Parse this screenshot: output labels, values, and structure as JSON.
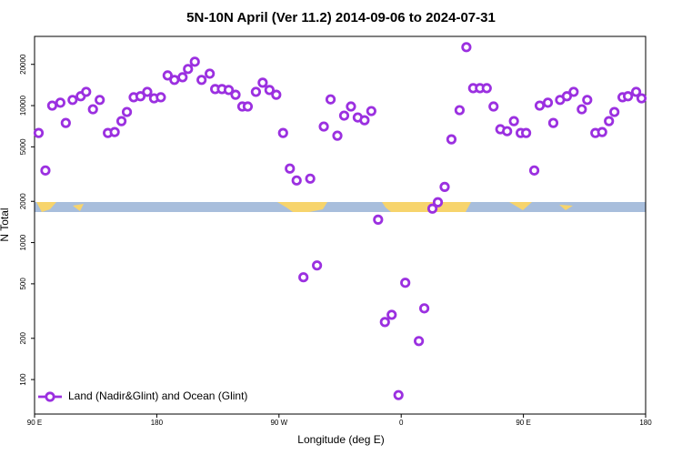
{
  "chart_data": {
    "type": "scatter",
    "title": "5N-10N April (Ver 11.2)   2014-09-06 to 2024-07-31",
    "xlabel": "Longitude (deg E)",
    "ylabel": "N Total",
    "xlim": [
      90,
      540
    ],
    "xticks": [
      {
        "value": 90,
        "label": "90 E"
      },
      {
        "value": 180,
        "label": "180"
      },
      {
        "value": 270,
        "label": "90 W"
      },
      {
        "value": 360,
        "label": "0"
      },
      {
        "value": 450,
        "label": "90 E"
      },
      {
        "value": 540,
        "label": "180"
      }
    ],
    "ylim": [
      56,
      32000
    ],
    "log_y": true,
    "yticks": [
      100,
      200,
      500,
      1000,
      2000,
      5000,
      10000,
      20000
    ],
    "legend": "bottom left",
    "x": [
      93,
      98,
      103,
      109,
      113,
      118,
      124,
      128,
      133,
      138,
      144,
      149,
      154,
      158,
      163,
      168,
      173,
      178,
      183,
      188,
      193,
      199,
      203,
      208,
      213,
      219,
      223,
      228,
      233,
      238,
      243,
      247,
      253,
      258,
      263,
      268,
      273,
      278,
      283,
      288,
      293,
      298,
      303,
      308,
      313,
      318,
      323,
      328,
      333,
      338,
      343,
      348,
      353,
      358,
      363,
      373,
      377,
      383,
      387,
      392,
      397,
      403,
      408,
      413,
      418,
      423,
      428,
      433,
      438,
      443,
      448,
      452,
      458,
      462,
      468,
      472,
      477,
      482,
      487,
      493,
      497,
      503,
      508,
      513,
      517,
      523,
      527,
      533,
      537
    ],
    "series": [
      {
        "name": "Land (Nadir&Glint) and Ocean (Glint)",
        "color": "#9b30e0",
        "values": [
          6310,
          3360,
          10000,
          10500,
          7470,
          11000,
          11700,
          12600,
          9400,
          11000,
          6310,
          6410,
          7700,
          8980,
          11500,
          11700,
          12600,
          11300,
          11500,
          16600,
          15400,
          16100,
          18500,
          20900,
          15400,
          17100,
          13200,
          13200,
          13000,
          12000,
          9850,
          9850,
          12600,
          14700,
          13000,
          12000,
          6310,
          3470,
          2840,
          558,
          2930,
          681,
          7030,
          11100,
          6030,
          8450,
          9850,
          8190,
          7820,
          9120,
          1470,
          263,
          297,
          77,
          509,
          191,
          331,
          1770,
          1970,
          2550,
          5670,
          9260,
          26700,
          13400,
          13400,
          13400,
          9850,
          6720,
          6500,
          7700,
          6310,
          6310,
          3360,
          10000,
          10500,
          7470,
          11000,
          11700,
          12600,
          9400,
          11000,
          6310,
          6410,
          7700,
          8980,
          11500,
          11700,
          12600,
          11300
        ]
      }
    ]
  }
}
